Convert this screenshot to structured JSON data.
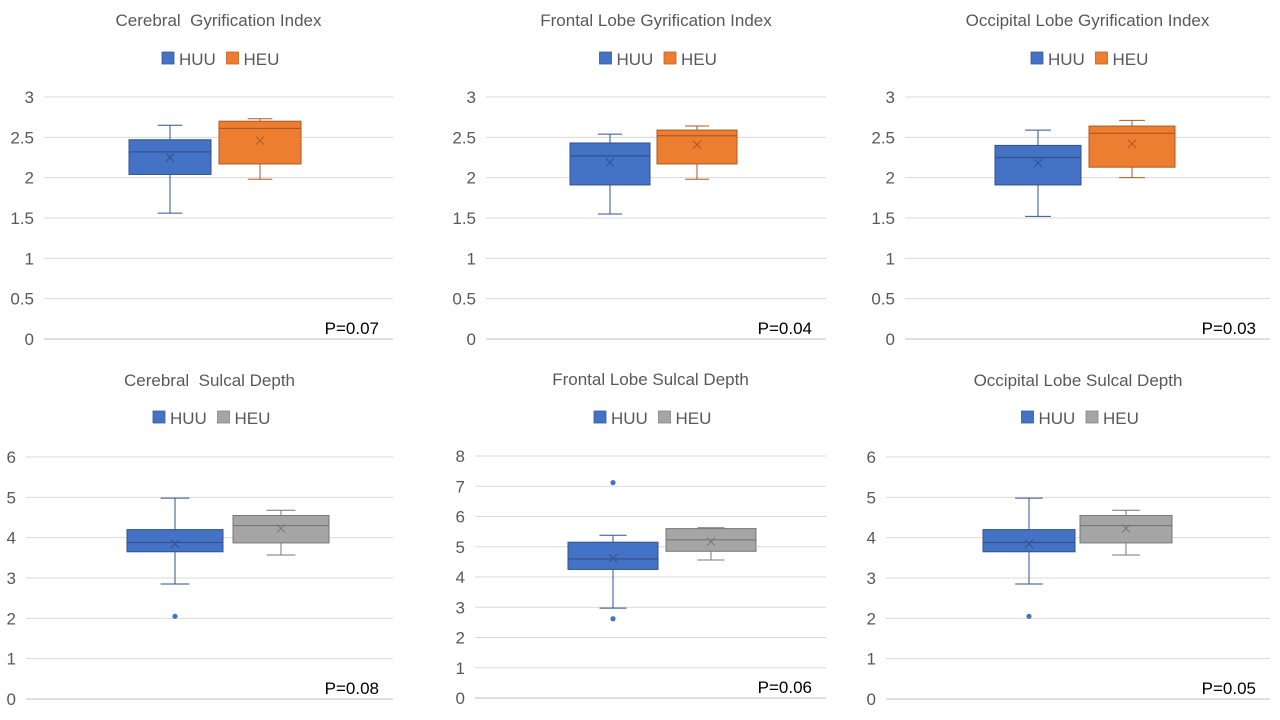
{
  "chart_data": [
    {
      "type": "box",
      "title": "Cerebral  Gyrification Index",
      "ylim": [
        0,
        3
      ],
      "yticks": [
        0,
        0.5,
        1,
        1.5,
        2,
        2.5,
        3
      ],
      "ytick_labels": [
        "0",
        "0.5",
        "1",
        "1.5",
        "2",
        "2.5",
        "3"
      ],
      "grid": true,
      "legend": "top-center",
      "annotation": "P=0.07",
      "series": [
        {
          "name": "HUU",
          "color": "#4472C4",
          "whisker_low": 1.56,
          "q1": 2.04,
          "median": 2.32,
          "q3": 2.47,
          "whisker_high": 2.65,
          "mean": 2.25,
          "outliers": []
        },
        {
          "name": "HEU",
          "color": "#ED7D31",
          "whisker_low": 1.98,
          "q1": 2.17,
          "median": 2.61,
          "q3": 2.7,
          "whisker_high": 2.73,
          "mean": 2.46,
          "outliers": []
        }
      ]
    },
    {
      "type": "box",
      "title": "Frontal Lobe Gyrification Index",
      "ylim": [
        0,
        3
      ],
      "yticks": [
        0,
        0.5,
        1,
        1.5,
        2,
        2.5,
        3
      ],
      "ytick_labels": [
        "0",
        "0.5",
        "1",
        "1.5",
        "2",
        "2.5",
        "3"
      ],
      "grid": true,
      "legend": "top-center",
      "annotation": "P=0.04",
      "series": [
        {
          "name": "HUU",
          "color": "#4472C4",
          "whisker_low": 1.55,
          "q1": 1.91,
          "median": 2.27,
          "q3": 2.43,
          "whisker_high": 2.54,
          "mean": 2.19,
          "outliers": []
        },
        {
          "name": "HEU",
          "color": "#ED7D31",
          "whisker_low": 1.98,
          "q1": 2.17,
          "median": 2.52,
          "q3": 2.59,
          "whisker_high": 2.64,
          "mean": 2.41,
          "outliers": []
        }
      ]
    },
    {
      "type": "box",
      "title": "Occipital Lobe Gyrification Index",
      "ylim": [
        0,
        3
      ],
      "yticks": [
        0,
        0.5,
        1,
        1.5,
        2,
        2.5,
        3
      ],
      "ytick_labels": [
        "0",
        "0.5",
        "1",
        "1.5",
        "2",
        "2.5",
        "3"
      ],
      "grid": true,
      "legend": "top-center",
      "annotation": "P=0.03",
      "series": [
        {
          "name": "HUU",
          "color": "#4472C4",
          "whisker_low": 1.52,
          "q1": 1.91,
          "median": 2.25,
          "q3": 2.4,
          "whisker_high": 2.59,
          "mean": 2.18,
          "outliers": []
        },
        {
          "name": "HEU",
          "color": "#ED7D31",
          "whisker_low": 2.0,
          "q1": 2.13,
          "median": 2.55,
          "q3": 2.64,
          "whisker_high": 2.71,
          "mean": 2.42,
          "outliers": []
        }
      ]
    },
    {
      "type": "box",
      "title": "Cerebral  Sulcal Depth",
      "ylim": [
        0,
        6
      ],
      "yticks": [
        0,
        1,
        2,
        3,
        4,
        5,
        6
      ],
      "ytick_labels": [
        "0",
        "1",
        "2",
        "3",
        "4",
        "5",
        "6"
      ],
      "grid": true,
      "legend": "top-center",
      "annotation": "P=0.08",
      "series": [
        {
          "name": "HUU",
          "color": "#4472C4",
          "whisker_low": 2.85,
          "q1": 3.65,
          "median": 3.88,
          "q3": 4.2,
          "whisker_high": 4.98,
          "mean": 3.85,
          "outliers": [
            2.05
          ]
        },
        {
          "name": "HEU",
          "color": "#A5A5A5",
          "whisker_low": 3.57,
          "q1": 3.87,
          "median": 4.3,
          "q3": 4.55,
          "whisker_high": 4.68,
          "mean": 4.23,
          "outliers": []
        }
      ]
    },
    {
      "type": "box",
      "title": "Frontal Lobe Sulcal Depth",
      "ylim": [
        0,
        8
      ],
      "yticks": [
        0,
        1,
        2,
        3,
        4,
        5,
        6,
        7,
        8
      ],
      "ytick_labels": [
        "0",
        "1",
        "2",
        "3",
        "4",
        "5",
        "6",
        "7",
        "8"
      ],
      "grid": true,
      "legend": "top-center",
      "annotation": "P=0.06",
      "series": [
        {
          "name": "HUU",
          "color": "#4472C4",
          "whisker_low": 2.97,
          "q1": 4.25,
          "median": 4.6,
          "q3": 5.15,
          "whisker_high": 5.38,
          "mean": 4.62,
          "outliers": [
            2.62,
            7.12
          ]
        },
        {
          "name": "HEU",
          "color": "#A5A5A5",
          "whisker_low": 4.56,
          "q1": 4.85,
          "median": 5.23,
          "q3": 5.6,
          "whisker_high": 5.63,
          "mean": 5.17,
          "outliers": []
        }
      ]
    },
    {
      "type": "box",
      "title": "Occipital Lobe Sulcal Depth",
      "ylim": [
        0,
        6
      ],
      "yticks": [
        0,
        1,
        2,
        3,
        4,
        5,
        6
      ],
      "ytick_labels": [
        "0",
        "1",
        "2",
        "3",
        "4",
        "5",
        "6"
      ],
      "grid": true,
      "legend": "top-center",
      "annotation": "P=0.05",
      "series": [
        {
          "name": "HUU",
          "color": "#4472C4",
          "whisker_low": 2.85,
          "q1": 3.65,
          "median": 3.88,
          "q3": 4.2,
          "whisker_high": 4.98,
          "mean": 3.85,
          "outliers": [
            2.05
          ]
        },
        {
          "name": "HEU",
          "color": "#A5A5A5",
          "whisker_low": 3.57,
          "q1": 3.87,
          "median": 4.3,
          "q3": 4.55,
          "whisker_high": 4.68,
          "mean": 4.23,
          "outliers": []
        }
      ]
    }
  ]
}
